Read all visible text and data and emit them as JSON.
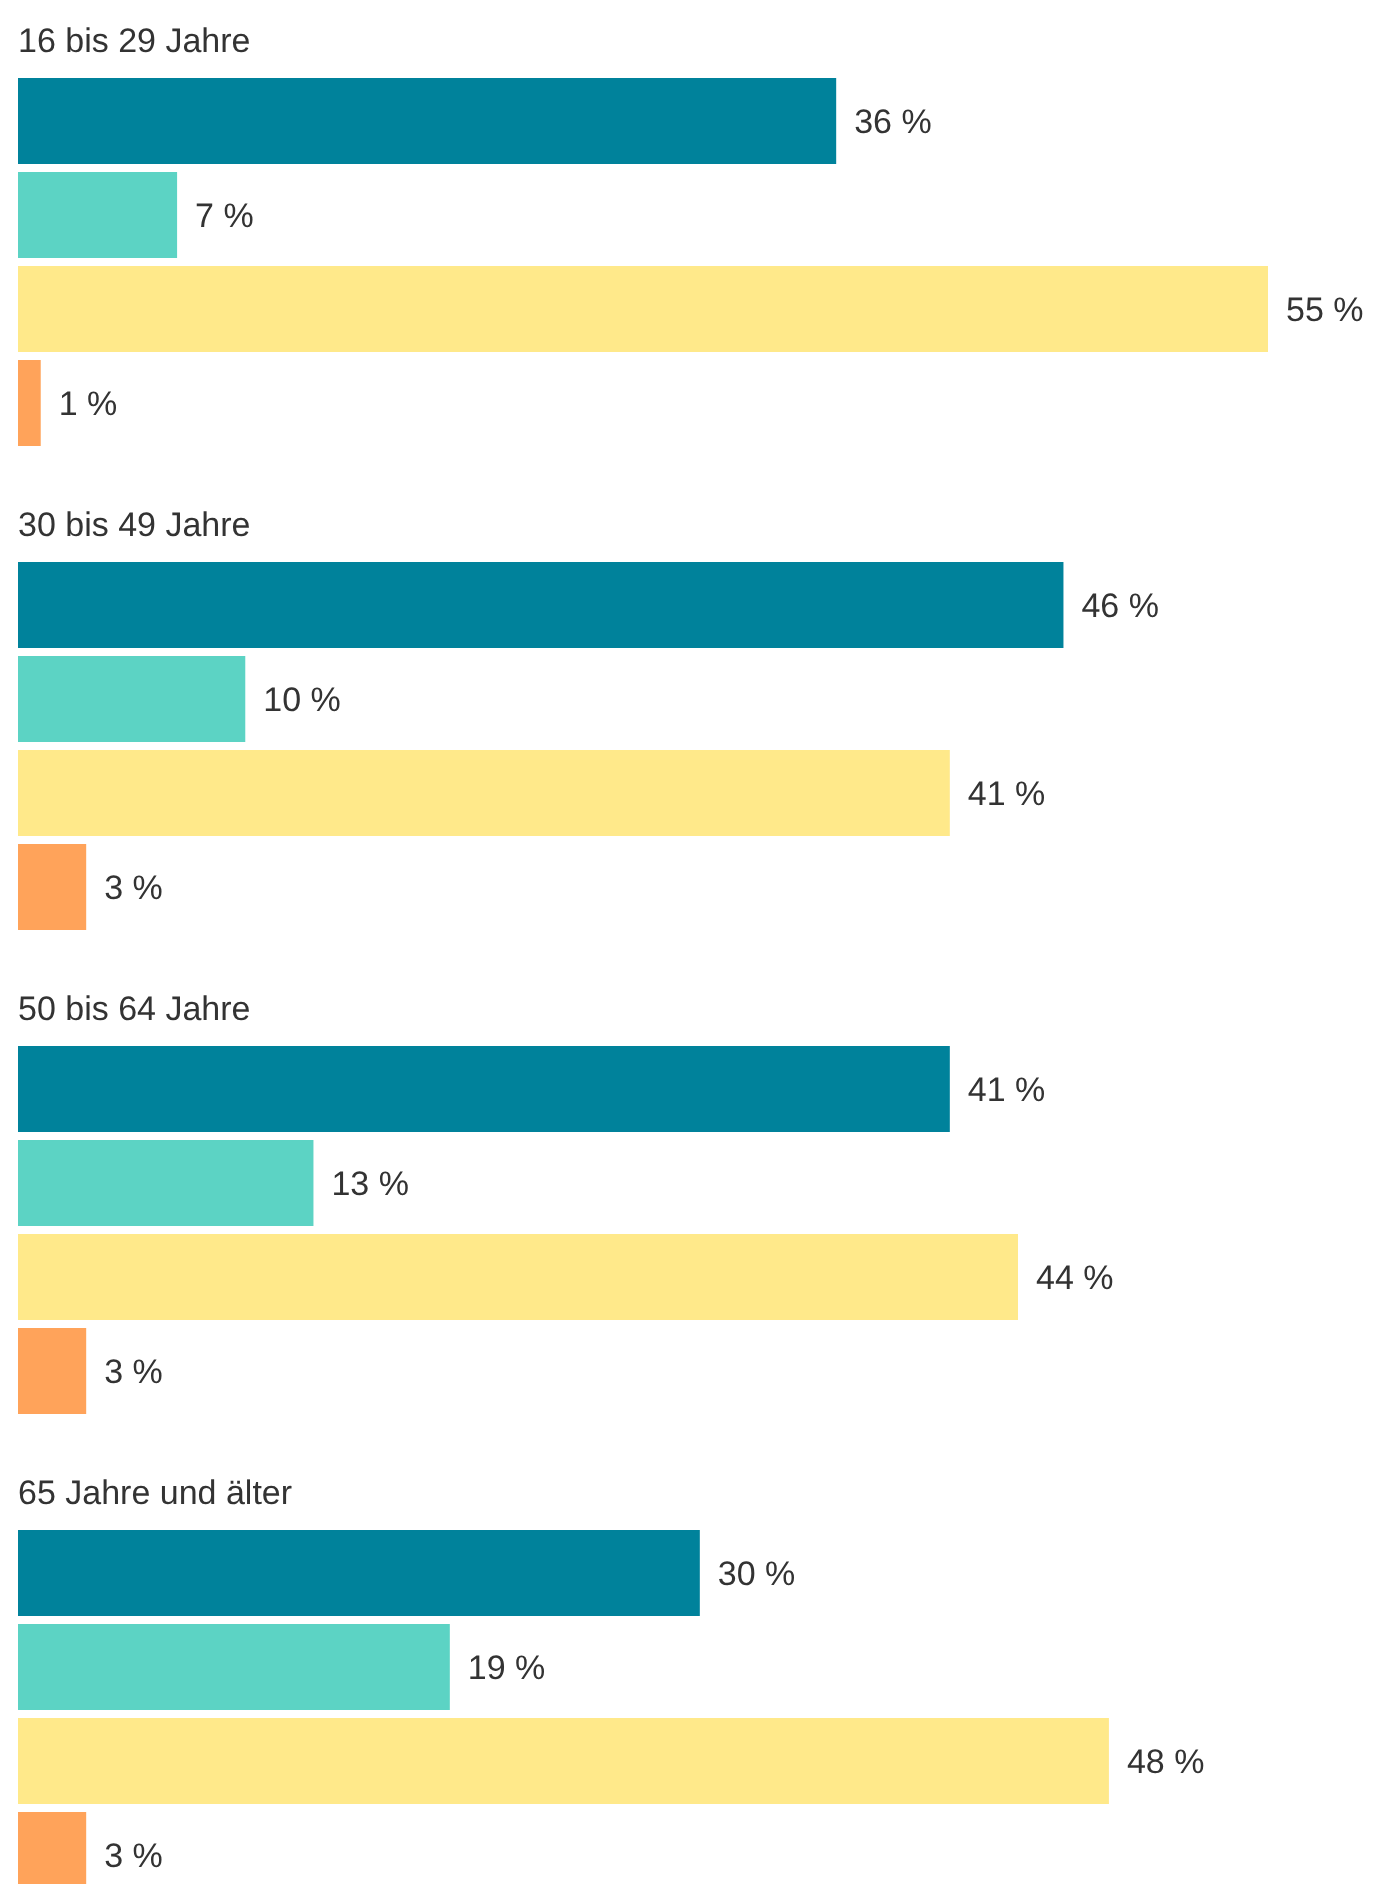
{
  "chart_data": {
    "type": "bar",
    "orientation": "horizontal",
    "categories": [
      "16 bis 29 Jahre",
      "30 bis 49 Jahre",
      "50 bis 64 Jahre",
      "65 Jahre und älter"
    ],
    "series": [
      {
        "color": "#00829b",
        "values": [
          36,
          46,
          41,
          30
        ],
        "value_labels": [
          "36 %",
          "46 %",
          "41 %",
          "30 %"
        ]
      },
      {
        "color": "#5cd3c4",
        "values": [
          7,
          10,
          13,
          19
        ],
        "value_labels": [
          "7 %",
          "10 %",
          "13 %",
          "19 %"
        ]
      },
      {
        "color": "#ffe98a",
        "values": [
          55,
          41,
          44,
          48
        ],
        "value_labels": [
          "55 %",
          "41 %",
          "44 %",
          "48 %"
        ]
      },
      {
        "color": "#ffa35a",
        "values": [
          1,
          3,
          3,
          3
        ],
        "value_labels": [
          "1 %",
          "3 %",
          "3 %",
          "3 %"
        ]
      }
    ]
  }
}
